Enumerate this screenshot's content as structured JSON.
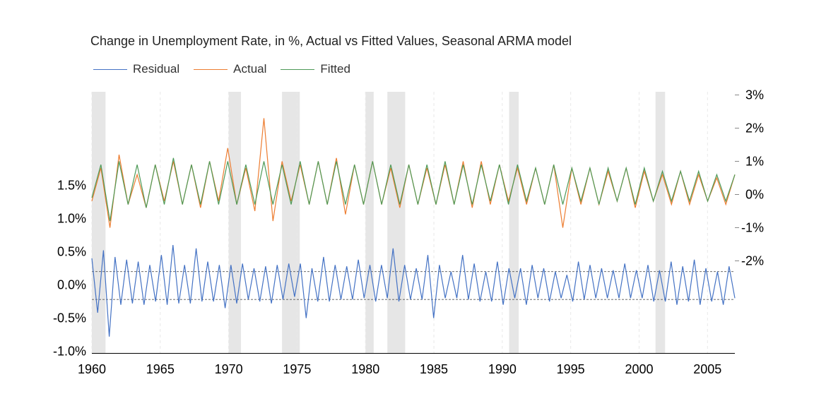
{
  "chart_data": {
    "type": "line",
    "title": "Change in Unemployment Rate, in %, Actual vs Fitted Values, Seasonal ARMA model",
    "legend": {
      "placement": "top-left",
      "items": [
        {
          "name": "Residual",
          "color": "#4472c4"
        },
        {
          "name": "Actual",
          "color": "#ed7d31"
        },
        {
          "name": "Fitted",
          "color": "#4e9a58"
        }
      ]
    },
    "x_axis": {
      "range": [
        1960,
        2007
      ],
      "ticks": [
        "1960",
        "1965",
        "1970",
        "1975",
        "1980",
        "1985",
        "1990",
        "1995",
        "2000",
        "2005"
      ]
    },
    "left_axis": {
      "range": [
        -1.0,
        2.0
      ],
      "ticks": [
        "-1.0%",
        "-0.5%",
        "0.0%",
        "0.5%",
        "1.0%",
        "1.5%"
      ]
    },
    "right_axis": {
      "range": [
        -5.0,
        3.0
      ],
      "ticks": [
        "-2%",
        "-1%",
        "0%",
        "1%",
        "2%",
        "3%"
      ]
    },
    "recessions": [
      [
        1960.0,
        1961.0
      ],
      [
        1970.0,
        1970.9
      ],
      [
        1973.9,
        1975.2
      ],
      [
        1980.0,
        1980.6
      ],
      [
        1981.6,
        1982.9
      ],
      [
        1990.5,
        1991.2
      ],
      [
        2001.2,
        2001.9
      ]
    ],
    "residual_bands": [
      0.2,
      -0.22
    ],
    "grid": false,
    "series": [
      {
        "name": "Residual",
        "axis": "left",
        "values": [
          0.4,
          -0.42,
          0.52,
          -0.78,
          0.42,
          -0.3,
          0.38,
          -0.28,
          0.35,
          -0.3,
          0.3,
          -0.25,
          0.45,
          -0.3,
          0.6,
          -0.28,
          0.3,
          -0.28,
          0.55,
          -0.25,
          0.35,
          -0.25,
          0.3,
          -0.35,
          0.3,
          -0.28,
          0.32,
          -0.22,
          0.25,
          -0.25,
          0.28,
          -0.28,
          0.3,
          -0.22,
          0.32,
          -0.18,
          0.32,
          -0.5,
          0.25,
          -0.25,
          0.42,
          -0.25,
          0.3,
          -0.22,
          0.28,
          -0.22,
          0.38,
          -0.2,
          0.3,
          -0.25,
          0.3,
          -0.2,
          0.55,
          -0.25,
          0.3,
          -0.22,
          0.25,
          -0.22,
          0.45,
          -0.5,
          0.3,
          -0.2,
          0.2,
          -0.2,
          0.45,
          -0.22,
          0.32,
          -0.25,
          0.2,
          -0.25,
          0.35,
          -0.3,
          0.25,
          -0.2,
          0.25,
          -0.3,
          0.3,
          -0.2,
          0.25,
          -0.25,
          0.2,
          -0.2,
          0.15,
          -0.25,
          0.35,
          -0.22,
          0.3,
          -0.2,
          0.25,
          -0.2,
          0.22,
          -0.2,
          0.32,
          -0.2,
          0.22,
          -0.2,
          0.3,
          -0.25,
          0.22,
          -0.25,
          0.35,
          -0.3,
          0.28,
          -0.25,
          0.38,
          -0.3,
          0.25,
          -0.25,
          0.2,
          -0.3,
          0.28,
          -0.2
        ]
      },
      {
        "name": "Actual",
        "axis": "right",
        "values": [
          -0.2,
          0.8,
          -1.0,
          1.2,
          -0.3,
          0.6,
          -0.4,
          0.9,
          -0.2,
          1.0,
          -0.3,
          0.9,
          -0.4,
          1.0,
          -0.2,
          1.4,
          -0.3,
          0.8,
          -0.5,
          2.3,
          -0.8,
          1.0,
          -0.2,
          0.9,
          -0.3,
          1.0,
          -0.3,
          1.1,
          -0.6,
          0.9,
          -0.3,
          1.0,
          -0.3,
          0.8,
          -0.4,
          0.9,
          -0.3,
          0.8,
          -0.3,
          0.9,
          -0.3,
          1.0,
          -0.4,
          1.0,
          -0.3,
          0.9,
          -0.2,
          0.8,
          -0.3,
          0.8,
          -0.3,
          0.9,
          -1.0,
          0.8,
          -0.3,
          0.8,
          -0.3,
          0.7,
          -0.2,
          0.8,
          -0.4,
          0.7,
          -0.2,
          0.6,
          -0.3,
          0.7,
          -0.3,
          0.6,
          -0.2,
          0.5,
          -0.3,
          0.6
        ]
      },
      {
        "name": "Fitted",
        "axis": "right",
        "values": [
          -0.1,
          0.9,
          -0.8,
          1.0,
          -0.3,
          0.9,
          -0.4,
          0.9,
          -0.3,
          1.1,
          -0.3,
          0.9,
          -0.3,
          1.0,
          -0.3,
          1.0,
          -0.3,
          0.9,
          -0.3,
          1.0,
          -0.3,
          0.9,
          -0.3,
          1.0,
          -0.3,
          1.0,
          -0.3,
          1.0,
          -0.3,
          0.9,
          -0.3,
          1.0,
          -0.3,
          0.9,
          -0.3,
          0.9,
          -0.3,
          0.9,
          -0.3,
          1.0,
          -0.3,
          0.9,
          -0.3,
          0.9,
          -0.2,
          0.9,
          -0.3,
          0.9,
          -0.2,
          0.8,
          -0.3,
          0.9,
          -0.3,
          0.8,
          -0.2,
          0.8,
          -0.3,
          0.8,
          -0.2,
          0.8,
          -0.3,
          0.8,
          -0.2,
          0.7,
          -0.2,
          0.7,
          -0.2,
          0.7,
          -0.2,
          0.6,
          -0.2,
          0.6
        ]
      }
    ]
  }
}
